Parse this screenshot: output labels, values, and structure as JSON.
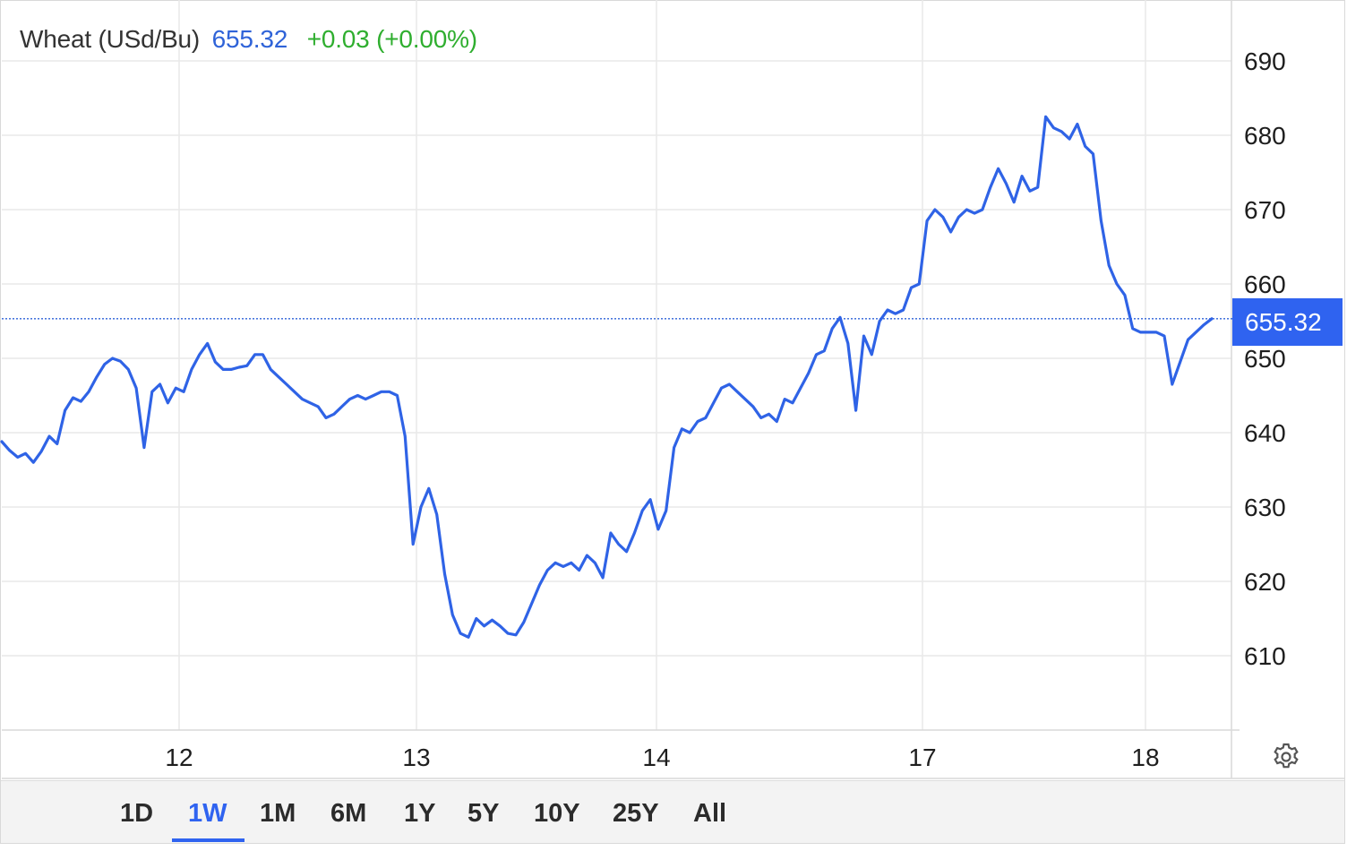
{
  "header": {
    "name": "Wheat (USd/Bu)",
    "price": "655.32",
    "change": "+0.03 (+0.00%)"
  },
  "price_tag": "655.32",
  "range_buttons": [
    "1D",
    "1W",
    "1M",
    "6M",
    "1Y",
    "5Y",
    "10Y",
    "25Y",
    "All"
  ],
  "active_range": "1W",
  "icons": {
    "settings": "gear-icon"
  },
  "colors": {
    "line": "#2f63e6",
    "price_tag_bg": "#2f63f0",
    "change_positive": "#2fae2f",
    "header_price": "#2f63d8"
  },
  "chart_data": {
    "type": "line",
    "title": "Wheat (USd/Bu)",
    "last_value": 655.32,
    "change": "+0.03 (+0.00%)",
    "x_tick_labels": [
      "12",
      "13",
      "14",
      "17",
      "18"
    ],
    "y_ticks": [
      610,
      620,
      630,
      640,
      650,
      660,
      670,
      680,
      690
    ],
    "ylim": [
      600,
      693
    ],
    "grid": true,
    "series": [
      {
        "values": [
          638.8,
          637.6,
          636.7,
          637.2,
          636.0,
          637.5,
          639.5,
          638.5,
          643.0,
          644.7,
          644.2,
          645.5,
          647.5,
          649.2,
          650.0,
          649.6,
          648.5,
          646.0,
          638.0,
          645.5,
          646.5,
          644.0,
          646.0,
          645.5,
          648.5,
          650.5,
          652.0,
          649.5,
          648.5,
          648.5,
          648.8,
          649.0,
          650.5,
          650.5,
          648.5,
          647.5,
          646.5,
          645.5,
          644.5,
          644.0,
          643.5,
          642.0,
          642.5,
          643.5,
          644.5,
          645.0,
          644.5,
          645.0,
          645.5,
          645.5,
          645.0,
          639.5,
          625.0,
          630.0,
          632.5,
          629.0,
          621.0,
          615.5,
          613.0,
          612.5,
          615.0,
          614.0,
          614.8,
          614.0,
          613.0,
          612.8,
          614.5,
          617.0,
          619.5,
          621.5,
          622.5,
          622.0,
          622.5,
          621.5,
          623.5,
          622.5,
          620.5,
          626.5,
          625.0,
          624.0,
          626.5,
          629.5,
          631.0,
          627.0,
          629.5,
          638.0,
          640.5,
          640.0,
          641.5,
          642.0,
          644.0,
          646.0,
          646.5,
          645.5,
          644.5,
          643.5,
          642.0,
          642.5,
          641.5,
          644.5,
          644.0,
          646.0,
          648.0,
          650.5,
          651.0,
          654.0,
          655.5,
          652.0,
          643.0,
          653.0,
          650.5,
          655.0,
          656.5,
          656.0,
          656.5,
          659.5,
          660.0,
          668.5,
          670.0,
          669.0,
          667.0,
          669.0,
          670.0,
          669.5,
          670.0,
          673.0,
          675.5,
          673.5,
          671.0,
          674.5,
          672.5,
          673.0,
          682.5,
          681.0,
          680.5,
          679.5,
          681.5,
          678.5,
          677.5,
          668.5,
          662.5,
          660.0,
          658.5,
          654.0,
          653.5,
          653.5,
          653.5,
          653.0,
          646.5,
          649.5,
          652.5,
          653.5,
          654.5,
          655.32
        ]
      }
    ]
  }
}
